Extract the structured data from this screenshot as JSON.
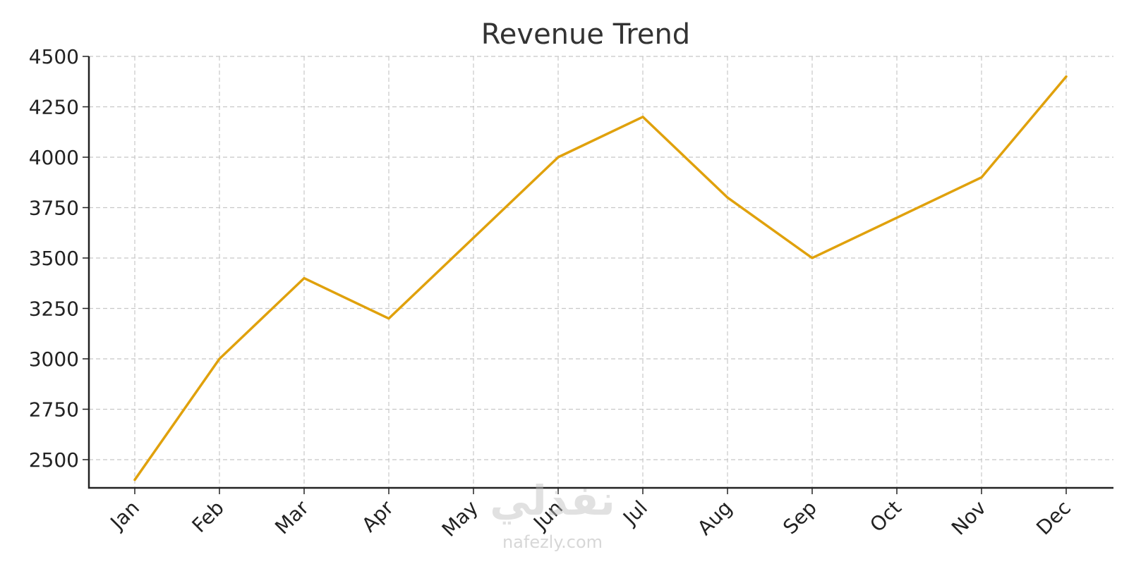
{
  "watermark": {
    "brand_arabic": "نفذلي",
    "brand_url": "nafezly.com"
  },
  "chart_data": {
    "type": "line",
    "title": "Revenue Trend",
    "xlabel": "",
    "ylabel": "",
    "categories": [
      "Jan",
      "Feb",
      "Mar",
      "Apr",
      "May",
      "Jun",
      "Jul",
      "Aug",
      "Sep",
      "Oct",
      "Nov",
      "Dec"
    ],
    "series": [
      {
        "values": [
          2400,
          3000,
          3400,
          3200,
          3600,
          4000,
          4200,
          3800,
          3500,
          3700,
          3900,
          4400
        ],
        "color": "#E0A10C"
      }
    ],
    "y_ticks": [
      2500,
      2750,
      3000,
      3250,
      3500,
      3750,
      4000,
      4250,
      4500
    ],
    "ylim": [
      2360,
      4500
    ],
    "grid": true,
    "legend": "none"
  }
}
